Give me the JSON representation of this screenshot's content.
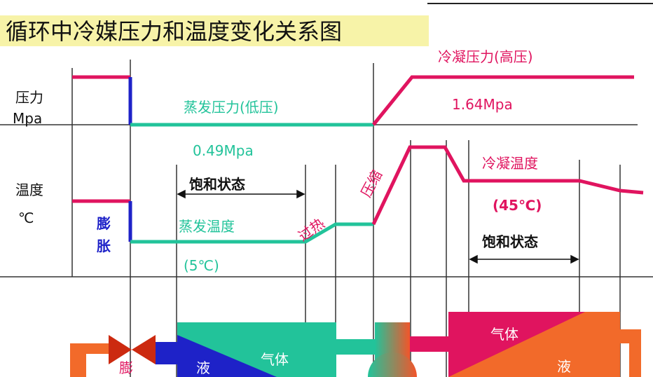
{
  "title": "循环中冷媒压力和温度变化关系图",
  "axes": {
    "pressure_label": "压力",
    "pressure_unit": "Mpa",
    "temperature_label": "温度",
    "temperature_unit": "℃"
  },
  "labels": {
    "expansion_top": "膨",
    "expansion_bottom": "胀",
    "evap_pressure": "蒸发压力(低压)",
    "evap_pressure_value": "0.49Mpa",
    "saturation_left": "饱和状态",
    "evap_temp": "蒸发温度",
    "evap_temp_value": "(5℃)",
    "superheat": "过热",
    "compression": "压缩",
    "cond_pressure": "冷凝压力(高压)",
    "cond_pressure_value": "1.64Mpa",
    "cond_temp": "冷凝温度",
    "cond_temp_value": "(45℃)",
    "saturation_right": "饱和状态"
  },
  "components": {
    "valve_label": "膨",
    "evap_liquid": "液",
    "evap_gas": "气体",
    "cond_gas": "气体",
    "cond_liquid": "液"
  },
  "colors": {
    "high": "#e0145f",
    "low": "#22c39a",
    "expansion": "#1e22c8",
    "pipe_orange": "#f26a2a",
    "title_highlight": "#f7f3a8"
  }
}
